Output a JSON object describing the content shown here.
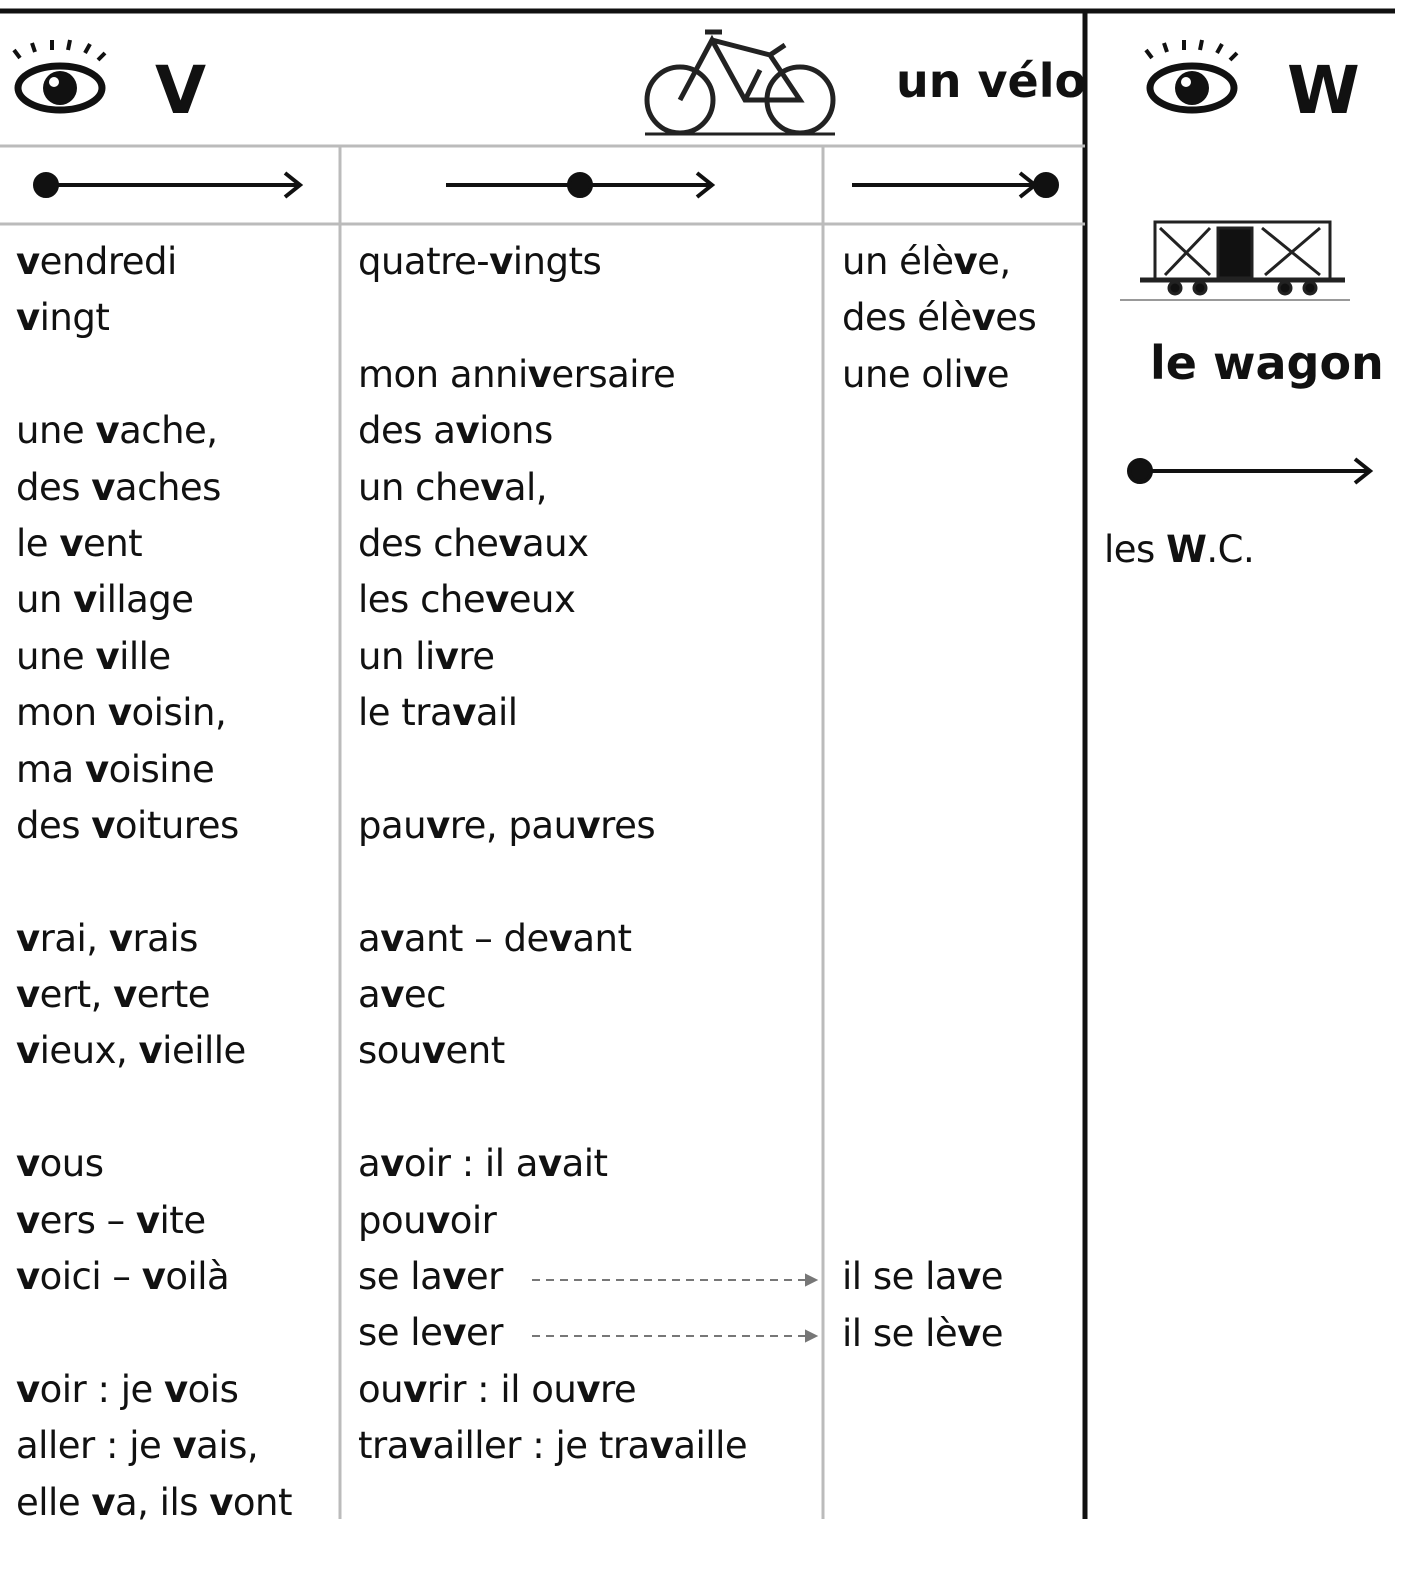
{
  "v_section": {
    "letter": "V",
    "example": "un vélo",
    "columns": [
      [
        [
          "vendredi",
          "vingt"
        ],
        [
          "une vache,",
          "des vaches",
          "le vent",
          "un village",
          "une ville",
          "mon voisin,",
          "ma voisine",
          "des voitures"
        ],
        [
          "vrai, vrais",
          "vert, verte",
          "vieux, vieille"
        ],
        [
          "vous",
          "vers – vite",
          "voici – voilà"
        ],
        [
          "voir : je vois",
          "aller : je vais,",
          "elle va, ils vont"
        ]
      ],
      [
        [
          "quatre-vingts"
        ],
        [
          "mon anniversaire",
          "des avions",
          "un cheval,",
          "des chevaux",
          "les cheveux",
          "un livre",
          "le travail"
        ],
        [
          "pauvre, pauvres"
        ],
        [
          "avant – devant",
          "avec",
          "souvent"
        ],
        [
          "avoir : il avait",
          "pouvoir",
          "se laver",
          "se lever",
          "ouvrir : il ouvre",
          "travailler : je travaille"
        ]
      ],
      [
        [
          "un élève,",
          "des élèves",
          "une olive"
        ],
        [
          "il se lave",
          "il se lève"
        ]
      ]
    ]
  },
  "w_section": {
    "letter": "W",
    "example": "le wagon",
    "words": [
      "les W.C."
    ]
  }
}
